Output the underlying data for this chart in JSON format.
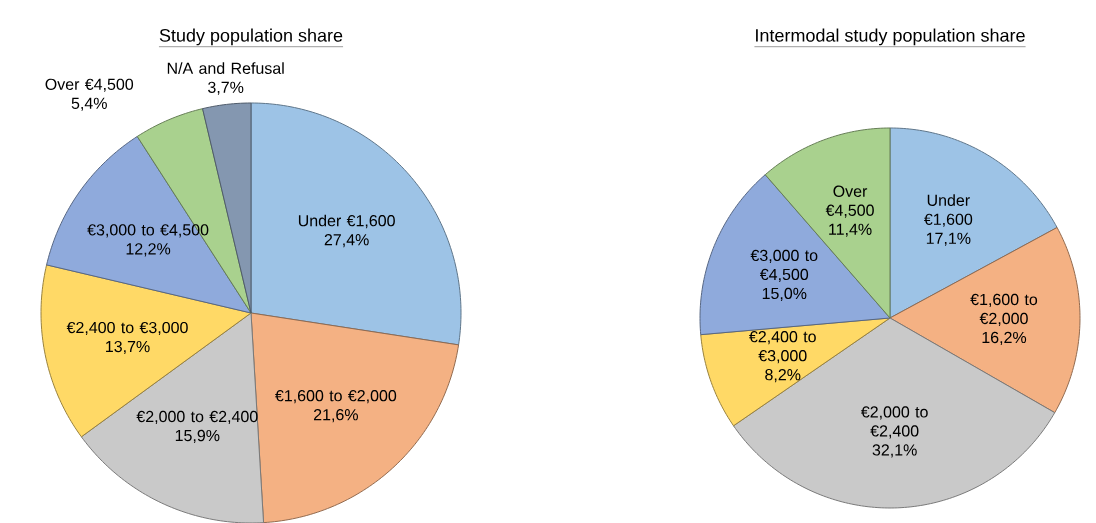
{
  "chart_data": [
    {
      "type": "pie",
      "title": "Study population share",
      "categories": [
        "Under €1,600",
        "€1,600 to €2,000",
        "€2,000 to €2,400",
        "€2,400 to €3,000",
        "€3,000 to €4,500",
        "Over €4,500",
        "N/A and Refusal"
      ],
      "values": [
        27.4,
        21.6,
        15.9,
        13.7,
        12.2,
        5.4,
        3.7
      ],
      "value_labels": [
        "27,4%",
        "21,6%",
        "15,9%",
        "13,7%",
        "12,2%",
        "5,4%",
        "3,7%"
      ],
      "colors": [
        "#9dc3e6",
        "#f4b183",
        "#c9c9c9",
        "#ffd966",
        "#8faadc",
        "#a9d18e",
        "#8497b0"
      ]
    },
    {
      "type": "pie",
      "title": "Intermodal study population share",
      "categories": [
        "Under €1,600",
        "€1,600 to €2,000",
        "€2,000 to €2,400",
        "€2,400 to €3,000",
        "€3,000 to €4,500",
        "Over €4,500"
      ],
      "values": [
        17.1,
        16.2,
        32.1,
        8.2,
        15.0,
        11.4
      ],
      "value_labels": [
        "17,1%",
        "16,2%",
        "32,1%",
        "8,2%",
        "15,0%",
        "11,4%"
      ],
      "colors": [
        "#9dc3e6",
        "#f4b183",
        "#c9c9c9",
        "#ffd966",
        "#8faadc",
        "#a9d18e"
      ]
    }
  ]
}
